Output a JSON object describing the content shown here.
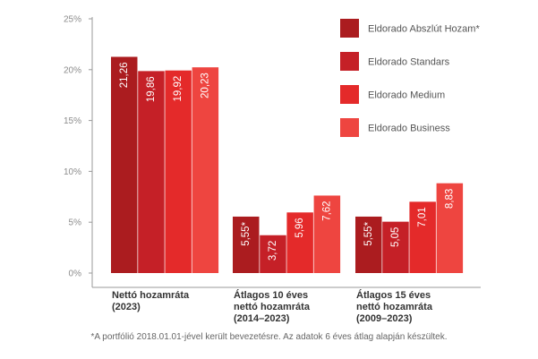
{
  "chart_data": {
    "type": "bar",
    "categories": [
      [
        "Nettó hozamráta",
        "(2023)"
      ],
      [
        "Átlagos 10 éves",
        "nettó hozamráta",
        "(2014–2023)"
      ],
      [
        "Átlagos 15 éves",
        "nettó hozamráta",
        "(2009–2023)"
      ]
    ],
    "series": [
      {
        "name": "Eldorado Abszlút Hozam*",
        "color": "#ab1c1f",
        "values": [
          21.26,
          5.55,
          5.55
        ],
        "labels": [
          "21,26",
          "5,55*",
          "5,55*"
        ]
      },
      {
        "name": "Eldorado Standars",
        "color": "#c52027",
        "values": [
          19.86,
          3.72,
          5.05
        ],
        "labels": [
          "19,86",
          "3,72",
          "5,05"
        ]
      },
      {
        "name": "Eldorado Medium",
        "color": "#e42a2a",
        "values": [
          19.92,
          5.96,
          7.01
        ],
        "labels": [
          "19,92",
          "5,96",
          "7,01"
        ]
      },
      {
        "name": "Eldorado Business",
        "color": "#ee4540",
        "values": [
          20.23,
          7.62,
          8.83
        ],
        "labels": [
          "20,23",
          "7,62",
          "8,83"
        ]
      }
    ],
    "ylim": [
      0,
      25
    ],
    "yticks": [
      0,
      5,
      10,
      15,
      20,
      25
    ],
    "ytick_labels": [
      "0%",
      "5%",
      "10%",
      "15%",
      "20%",
      "25%"
    ],
    "grid": false,
    "legend_position": "top-right"
  },
  "footnote": "*A portfólió 2018.01.01-jével került bevezetésre. Az adatok 6 éves átlag alapján készültek."
}
